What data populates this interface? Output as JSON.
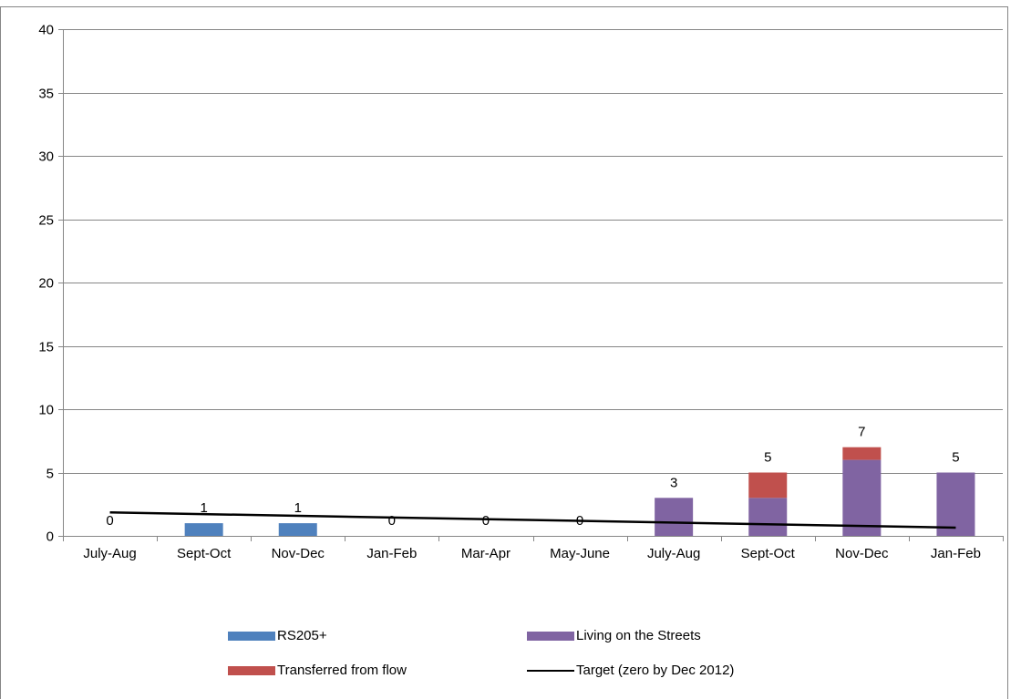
{
  "chart_data": {
    "type": "bar",
    "stacked": true,
    "title": "",
    "categories": [
      "July-Aug",
      "Sept-Oct",
      "Nov-Dec",
      "Jan-Feb",
      "Mar-Apr",
      "May-June",
      "July-Aug",
      "Sept-Oct",
      "Nov-Dec",
      "Jan-Feb"
    ],
    "series": [
      {
        "name": "RS205+",
        "color": "#4f81bd",
        "values": [
          0,
          1,
          1,
          0,
          0,
          0,
          0,
          0,
          0,
          0
        ]
      },
      {
        "name": "Living on the Streets",
        "color": "#8064a2",
        "values": [
          0,
          0,
          0,
          0,
          0,
          0,
          3,
          3,
          6,
          5
        ]
      },
      {
        "name": "Transferred from flow",
        "color": "#c0504d",
        "values": [
          0,
          0,
          0,
          0,
          0,
          0,
          0,
          2,
          1,
          0
        ]
      }
    ],
    "totals": [
      0,
      1,
      1,
      0,
      0,
      0,
      3,
      5,
      7,
      5
    ],
    "line": {
      "name": "Target (zero by Dec 2012)",
      "color": "#000000",
      "values": [
        1.85,
        0.65
      ]
    },
    "ylim": [
      0,
      40
    ],
    "yticks": [
      0,
      5,
      10,
      15,
      20,
      25,
      30,
      35,
      40
    ],
    "grid": true,
    "legend_position": "bottom"
  }
}
